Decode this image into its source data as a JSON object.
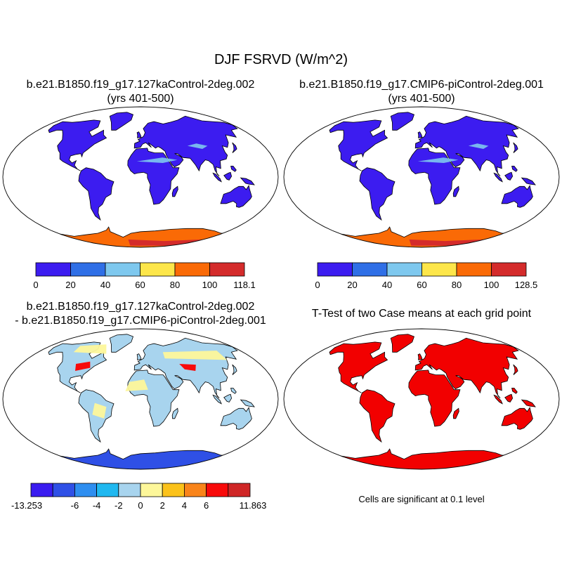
{
  "figure": {
    "title": "DJF FSRVD (W/m^2)",
    "note": "Cells are significant at 0.1 level"
  },
  "panels": {
    "a": {
      "title_line1": "b.e21.B1850.f19_g17.127kaControl-2deg.002",
      "title_line2": "(yrs 401-500)",
      "colorbar": {
        "colors": [
          "#3c1cf0",
          "#2f6fe6",
          "#7ec8ee",
          "#fde64a",
          "#fa6a06",
          "#d42b2b"
        ],
        "labels": [
          "0",
          "20",
          "40",
          "60",
          "80",
          "100",
          "118.1"
        ]
      }
    },
    "b": {
      "title_line1": "b.e21.B1850.f19_g17.CMIP6-piControl-2deg.001",
      "title_line2": "(yrs 401-500)",
      "colorbar": {
        "colors": [
          "#3c1cf0",
          "#2f6fe6",
          "#7ec8ee",
          "#fde64a",
          "#fa6a06",
          "#d42b2b"
        ],
        "labels": [
          "0",
          "20",
          "40",
          "60",
          "80",
          "100",
          "128.5"
        ]
      }
    },
    "c": {
      "title_line1": "b.e21.B1850.f19_g17.127kaControl-2deg.002",
      "title_line2": "- b.e21.B1850.f19_g17.CMIP6-piControl-2deg.001",
      "colorbar": {
        "colors": [
          "#3a1cf0",
          "#2f50e6",
          "#2e8ef0",
          "#20b8f0",
          "#a8d4ee",
          "#fdf79a",
          "#fbc21a",
          "#f9841a",
          "#f80a0a",
          "#cf2626"
        ],
        "labels": [
          "-13.253",
          "-6",
          "-4",
          "-2",
          "0",
          "2",
          "4",
          "6",
          "11.863"
        ]
      }
    },
    "d": {
      "title_line1": "T-Test of two Case means at each grid point",
      "fill_color": "#f20000"
    }
  }
}
